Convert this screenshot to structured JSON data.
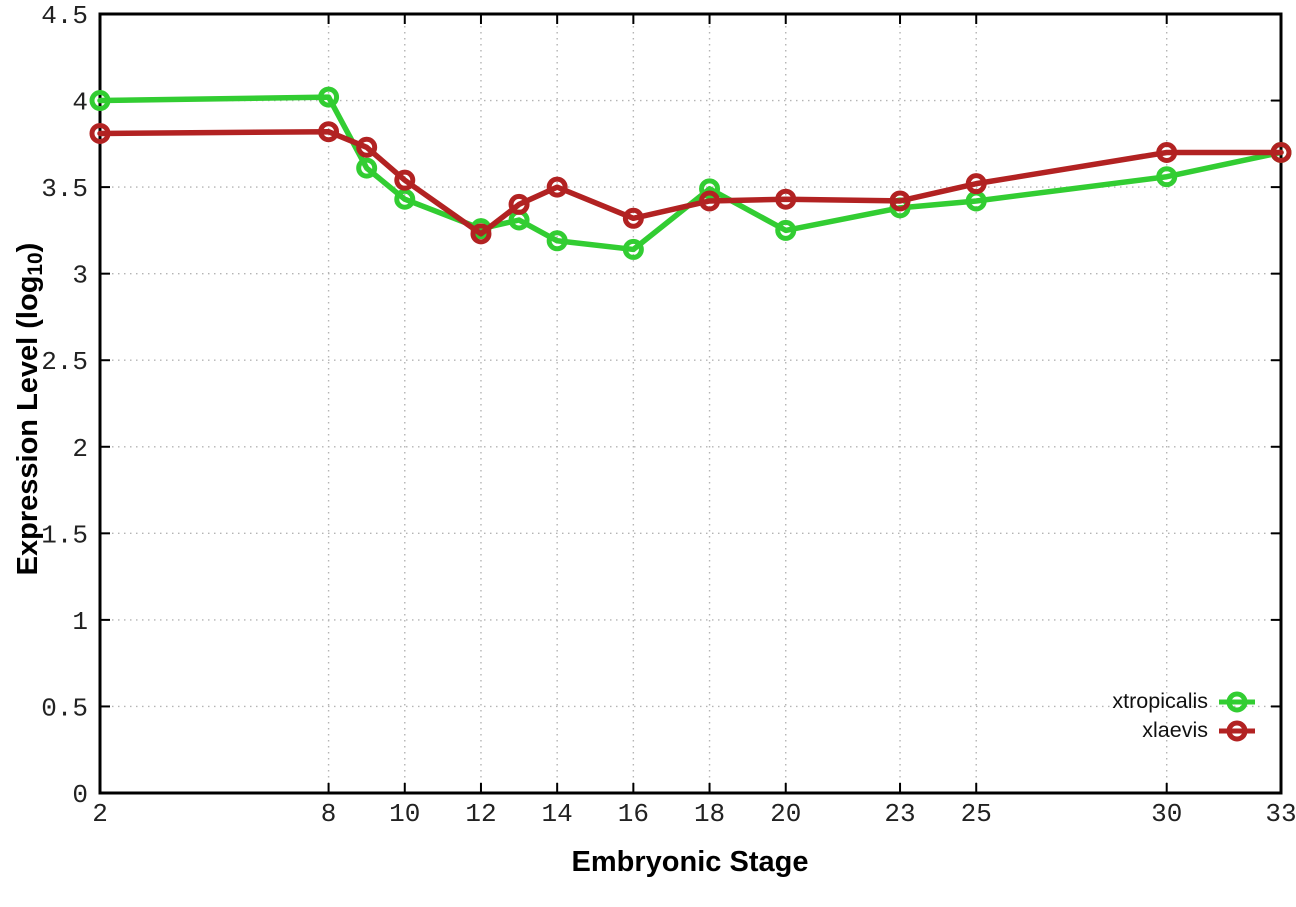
{
  "chart_data": {
    "type": "line",
    "title": "",
    "xlabel": "Embryonic Stage",
    "ylabel": "Expression Level (log10)",
    "ylabel_parts": {
      "pre": "Expression Level (log",
      "sub": "10",
      "post": ")"
    },
    "xlim": [
      2,
      33
    ],
    "ylim": [
      0,
      4.5
    ],
    "grid": true,
    "grid_style": "dotted",
    "legend_position": "bottom-right",
    "marker": "open-circle",
    "xticks": [
      2,
      8,
      10,
      12,
      14,
      16,
      18,
      20,
      23,
      25,
      30,
      33
    ],
    "xtick_labels": [
      "2",
      "8",
      "10",
      "12",
      "14",
      "16",
      "18",
      "20",
      "23",
      "25",
      "30",
      "33"
    ],
    "yticks": [
      0,
      0.5,
      1,
      1.5,
      2,
      2.5,
      3,
      3.5,
      4,
      4.5
    ],
    "ytick_labels": [
      "0",
      "0.5",
      "1",
      "1.5",
      "2",
      "2.5",
      "3",
      "3.5",
      "4",
      "4.5"
    ],
    "x": [
      2,
      8,
      9,
      10,
      12,
      13,
      14,
      16,
      18,
      20,
      23,
      25,
      30,
      33
    ],
    "series": [
      {
        "name": "xtropicalis",
        "color": "#32cd32",
        "values": [
          4.0,
          4.02,
          3.61,
          3.43,
          3.26,
          3.31,
          3.19,
          3.14,
          3.49,
          3.25,
          3.38,
          3.42,
          3.56,
          3.7
        ]
      },
      {
        "name": "xlaevis",
        "color": "#b22222",
        "values": [
          3.81,
          3.82,
          3.73,
          3.54,
          3.23,
          3.4,
          3.5,
          3.32,
          3.42,
          3.43,
          3.42,
          3.52,
          3.7,
          3.7
        ]
      }
    ],
    "colors": {
      "axis": "#000000",
      "grid": "#b4b4b4",
      "tick_text": "#222222",
      "background": "#ffffff"
    }
  }
}
